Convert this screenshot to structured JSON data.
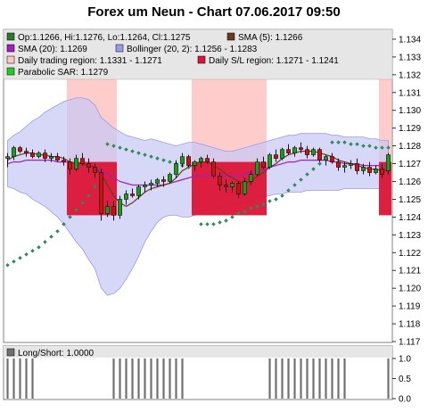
{
  "title": "Forex um Neun - Chart 07.06.2017 09:50",
  "colors": {
    "bollinger_band": "#c8c8f5",
    "bollinger_edge": "#9b9bea",
    "trading_region": "#ffc6c6",
    "sl_region": "#dc1436",
    "sma5": "#6a3a1a",
    "sma20": "#a020c0",
    "sar": "#2e8b57",
    "bull": "#1f9a1f",
    "bear": "#c81414",
    "longshort": "#707070"
  },
  "legend": [
    {
      "label": "Op:1.1266, Hi:1.1276, Lo:1.1264, Cl:1.1275",
      "color": "#2a7a2a"
    },
    {
      "label": "SMA (5): 1.1266",
      "color": "#6a3a1a"
    },
    {
      "label": "SMA (20): 1.1269",
      "color": "#a020c0"
    },
    {
      "label": "Bollinger (20, 2): 1.1256 - 1.1283",
      "color": "#9b9bea"
    },
    {
      "label": "Daily trading region: 1.1331 - 1.1271",
      "color": "#ffc6c6"
    },
    {
      "label": "Daily S/L region: 1.1271 - 1.1241",
      "color": "#dc1436"
    },
    {
      "label": "Parabolic SAR: 1.1279",
      "color": "#22cc22"
    }
  ],
  "subpanel_legend": {
    "label": "Long/Short: 1.0000",
    "color": "#707070"
  },
  "chart_data": [
    {
      "type": "candlestick",
      "y_ticks": [
        "1.134",
        "1.133",
        "1.132",
        "1.131",
        "1.130",
        "1.129",
        "1.128",
        "1.127",
        "1.126",
        "1.125",
        "1.124",
        "1.123",
        "1.122",
        "1.121",
        "1.120",
        "1.119",
        "1.118",
        "1.117"
      ],
      "ylim": [
        1.117,
        1.1345
      ],
      "n_bars": 62,
      "candles": [
        [
          1.1273,
          1.1276,
          1.1268,
          1.1274
        ],
        [
          1.1274,
          1.128,
          1.1272,
          1.1279
        ],
        [
          1.1279,
          1.128,
          1.1276,
          1.1277
        ],
        [
          1.1277,
          1.1279,
          1.1274,
          1.1276
        ],
        [
          1.1276,
          1.1278,
          1.1273,
          1.1274
        ],
        [
          1.1274,
          1.1277,
          1.1273,
          1.1276
        ],
        [
          1.1276,
          1.1278,
          1.1271,
          1.1273
        ],
        [
          1.1273,
          1.1276,
          1.1271,
          1.1274
        ],
        [
          1.1274,
          1.1276,
          1.1271,
          1.1272
        ],
        [
          1.1272,
          1.1274,
          1.1269,
          1.1271
        ],
        [
          1.1271,
          1.1273,
          1.1264,
          1.1267
        ],
        [
          1.1267,
          1.1275,
          1.1266,
          1.1273
        ],
        [
          1.1273,
          1.1276,
          1.1269,
          1.127
        ],
        [
          1.127,
          1.1273,
          1.1265,
          1.1268
        ],
        [
          1.1268,
          1.127,
          1.1262,
          1.1265
        ],
        [
          1.1265,
          1.1267,
          1.1238,
          1.1242
        ],
        [
          1.1242,
          1.1249,
          1.124,
          1.1246
        ],
        [
          1.1246,
          1.1249,
          1.1238,
          1.1241
        ],
        [
          1.1241,
          1.1252,
          1.1239,
          1.125
        ],
        [
          1.125,
          1.1255,
          1.1247,
          1.1253
        ],
        [
          1.1253,
          1.1256,
          1.1251,
          1.1252
        ],
        [
          1.1252,
          1.1258,
          1.125,
          1.1257
        ],
        [
          1.1257,
          1.126,
          1.1254,
          1.1258
        ],
        [
          1.1258,
          1.1261,
          1.1255,
          1.1259
        ],
        [
          1.1259,
          1.1262,
          1.1257,
          1.1261
        ],
        [
          1.1261,
          1.1263,
          1.1257,
          1.126
        ],
        [
          1.126,
          1.1265,
          1.1259,
          1.1264
        ],
        [
          1.1264,
          1.1272,
          1.1262,
          1.127
        ],
        [
          1.127,
          1.1276,
          1.1268,
          1.1274
        ],
        [
          1.1274,
          1.1275,
          1.1268,
          1.1269
        ],
        [
          1.1269,
          1.1272,
          1.1266,
          1.1271
        ],
        [
          1.1271,
          1.1274,
          1.1268,
          1.1273
        ],
        [
          1.1273,
          1.1275,
          1.127,
          1.1271
        ],
        [
          1.1271,
          1.1273,
          1.1262,
          1.1263
        ],
        [
          1.1263,
          1.1265,
          1.1255,
          1.1258
        ],
        [
          1.1258,
          1.1261,
          1.1254,
          1.1257
        ],
        [
          1.1257,
          1.126,
          1.1254,
          1.1259
        ],
        [
          1.1259,
          1.126,
          1.1251,
          1.1253
        ],
        [
          1.1253,
          1.1262,
          1.1252,
          1.126
        ],
        [
          1.126,
          1.1266,
          1.1258,
          1.1264
        ],
        [
          1.1264,
          1.1273,
          1.1263,
          1.1271
        ],
        [
          1.1271,
          1.1274,
          1.1267,
          1.1268
        ],
        [
          1.1268,
          1.1276,
          1.1267,
          1.1275
        ],
        [
          1.1275,
          1.1278,
          1.1271,
          1.1273
        ],
        [
          1.1273,
          1.1279,
          1.1272,
          1.1278
        ],
        [
          1.1278,
          1.1281,
          1.1275,
          1.1276
        ],
        [
          1.1276,
          1.128,
          1.1274,
          1.1279
        ],
        [
          1.1279,
          1.1282,
          1.1276,
          1.1278
        ],
        [
          1.1278,
          1.128,
          1.1273,
          1.1275
        ],
        [
          1.1275,
          1.1279,
          1.1274,
          1.1278
        ],
        [
          1.1278,
          1.1279,
          1.1271,
          1.1272
        ],
        [
          1.1272,
          1.1275,
          1.1269,
          1.1274
        ],
        [
          1.1274,
          1.1276,
          1.127,
          1.1271
        ],
        [
          1.1271,
          1.1273,
          1.1266,
          1.1268
        ],
        [
          1.1268,
          1.1271,
          1.1265,
          1.1269
        ],
        [
          1.1269,
          1.1272,
          1.1267,
          1.127
        ],
        [
          1.127,
          1.1273,
          1.1264,
          1.1266
        ],
        [
          1.1266,
          1.127,
          1.1264,
          1.1268
        ],
        [
          1.1268,
          1.1271,
          1.1263,
          1.1265
        ],
        [
          1.1265,
          1.1269,
          1.1264,
          1.1267
        ],
        [
          1.1267,
          1.127,
          1.1262,
          1.1264
        ],
        [
          1.1266,
          1.1276,
          1.1264,
          1.1275
        ]
      ],
      "sma5": [
        1.1272,
        1.1274,
        1.1275,
        1.1276,
        1.1276,
        1.1275,
        1.1275,
        1.1274,
        1.1274,
        1.1273,
        1.1271,
        1.127,
        1.127,
        1.1269,
        1.1268,
        1.1264,
        1.1258,
        1.1252,
        1.1248,
        1.1246,
        1.1248,
        1.1251,
        1.1254,
        1.1256,
        1.1257,
        1.1258,
        1.1259,
        1.1262,
        1.1266,
        1.1268,
        1.127,
        1.1271,
        1.1271,
        1.1269,
        1.1267,
        1.1264,
        1.1262,
        1.126,
        1.1259,
        1.126,
        1.1263,
        1.1265,
        1.1268,
        1.127,
        1.1273,
        1.1275,
        1.1276,
        1.1277,
        1.1277,
        1.1277,
        1.1276,
        1.1275,
        1.1274,
        1.1272,
        1.1271,
        1.127,
        1.1269,
        1.1268,
        1.1267,
        1.1267,
        1.1266,
        1.1266
      ],
      "sma20": [
        1.127,
        1.1271,
        1.1271,
        1.1272,
        1.1272,
        1.1272,
        1.1272,
        1.1272,
        1.1271,
        1.1271,
        1.1271,
        1.127,
        1.127,
        1.1269,
        1.1268,
        1.1266,
        1.1264,
        1.1262,
        1.126,
        1.1259,
        1.1258,
        1.1258,
        1.1258,
        1.1258,
        1.1258,
        1.1258,
        1.1259,
        1.126,
        1.1261,
        1.1262,
        1.1263,
        1.1263,
        1.1263,
        1.1263,
        1.1263,
        1.1263,
        1.1263,
        1.1263,
        1.1264,
        1.1265,
        1.1266,
        1.1267,
        1.1268,
        1.1269,
        1.127,
        1.1271,
        1.1271,
        1.1272,
        1.1272,
        1.1272,
        1.1272,
        1.1272,
        1.1271,
        1.1271,
        1.127,
        1.127,
        1.127,
        1.1269,
        1.1269,
        1.1269,
        1.1269,
        1.1269
      ],
      "bollinger_upper": [
        1.1283,
        1.1286,
        1.1288,
        1.1291,
        1.1294,
        1.1296,
        1.1299,
        1.1301,
        1.1303,
        1.1305,
        1.1306,
        1.1307,
        1.1307,
        1.1306,
        1.1303,
        1.1296,
        1.1293,
        1.129,
        1.1288,
        1.1286,
        1.1285,
        1.1284,
        1.1283,
        1.1284,
        1.1283,
        1.1282,
        1.1281,
        1.128,
        1.1281,
        1.1282,
        1.1282,
        1.1281,
        1.128,
        1.1279,
        1.1278,
        1.1277,
        1.1277,
        1.1278,
        1.1279,
        1.128,
        1.1281,
        1.1282,
        1.1283,
        1.1284,
        1.1285,
        1.1286,
        1.1286,
        1.1287,
        1.1287,
        1.1287,
        1.1287,
        1.1287,
        1.1286,
        1.1286,
        1.1285,
        1.1285,
        1.1285,
        1.1285,
        1.1284,
        1.1284,
        1.1283,
        1.1283
      ],
      "bollinger_lower": [
        1.1257,
        1.1256,
        1.1254,
        1.1253,
        1.125,
        1.1248,
        1.1246,
        1.1243,
        1.124,
        1.1236,
        1.1231,
        1.1226,
        1.1222,
        1.1216,
        1.1211,
        1.12,
        1.1196,
        1.1197,
        1.12,
        1.1205,
        1.1211,
        1.1218,
        1.1226,
        1.1232,
        1.1237,
        1.124,
        1.1241,
        1.1241,
        1.124,
        1.124,
        1.1241,
        1.1243,
        1.1244,
        1.1245,
        1.1245,
        1.1246,
        1.1246,
        1.1247,
        1.1248,
        1.1249,
        1.1251,
        1.1252,
        1.1252,
        1.1253,
        1.1253,
        1.1254,
        1.1254,
        1.1254,
        1.1255,
        1.1255,
        1.1255,
        1.1255,
        1.1255,
        1.1255,
        1.1256,
        1.1256,
        1.1256,
        1.1256,
        1.1256,
        1.1256,
        1.1256,
        1.1256
      ],
      "sar": [
        1.1213,
        1.1215,
        1.1217,
        1.1219,
        1.1221,
        1.1223,
        1.1226,
        1.1229,
        1.1232,
        1.1236,
        1.124,
        1.1244,
        1.1248,
        1.1252,
        1.1257,
        1.1263,
        1.1281,
        1.128,
        1.1279,
        1.1278,
        1.1277,
        1.1276,
        1.1275,
        1.1274,
        1.1273,
        1.1272,
        1.1271,
        1.127,
        1.1269,
        1.1268,
        null,
        1.1236,
        1.1236,
        1.1236,
        1.1237,
        1.1238,
        1.124,
        1.1242,
        1.1243,
        1.1245,
        1.1246,
        1.1247,
        1.1249,
        1.125,
        1.1252,
        1.1255,
        1.1258,
        1.1261,
        1.1264,
        1.1267,
        1.127,
        null,
        1.1282,
        1.1282,
        1.1282,
        1.1281,
        1.1281,
        1.128,
        1.128,
        1.1279,
        1.1279,
        1.1279
      ],
      "regions": [
        {
          "start": 10,
          "end": 18,
          "trading": [
            1.1331,
            1.1271
          ],
          "sl": [
            1.1271,
            1.1241
          ]
        },
        {
          "start": 30,
          "end": 42,
          "trading": [
            1.1331,
            1.1271
          ],
          "sl": [
            1.1271,
            1.1241
          ]
        },
        {
          "start": 60,
          "end": 62,
          "trading": [
            1.1331,
            1.1271
          ],
          "sl": [
            1.1271,
            1.1241
          ]
        }
      ]
    },
    {
      "type": "bar",
      "name": "Long/Short",
      "y_ticks": [
        "1.0",
        "0.5",
        "0.0"
      ],
      "ylim": [
        0,
        1
      ],
      "values": [
        1,
        1,
        1,
        1,
        1,
        0,
        0,
        0,
        0,
        0,
        0,
        0,
        0,
        0,
        0,
        0,
        0,
        1,
        1,
        1,
        1,
        1,
        1,
        1,
        1,
        1,
        1,
        1,
        1,
        0,
        0,
        0,
        0,
        0,
        0,
        0,
        0,
        0,
        0,
        0,
        0,
        0,
        1,
        1,
        1,
        1,
        1,
        1,
        1,
        1,
        1,
        1,
        1,
        1,
        1,
        0,
        0,
        0,
        0,
        0,
        0,
        1
      ]
    }
  ]
}
